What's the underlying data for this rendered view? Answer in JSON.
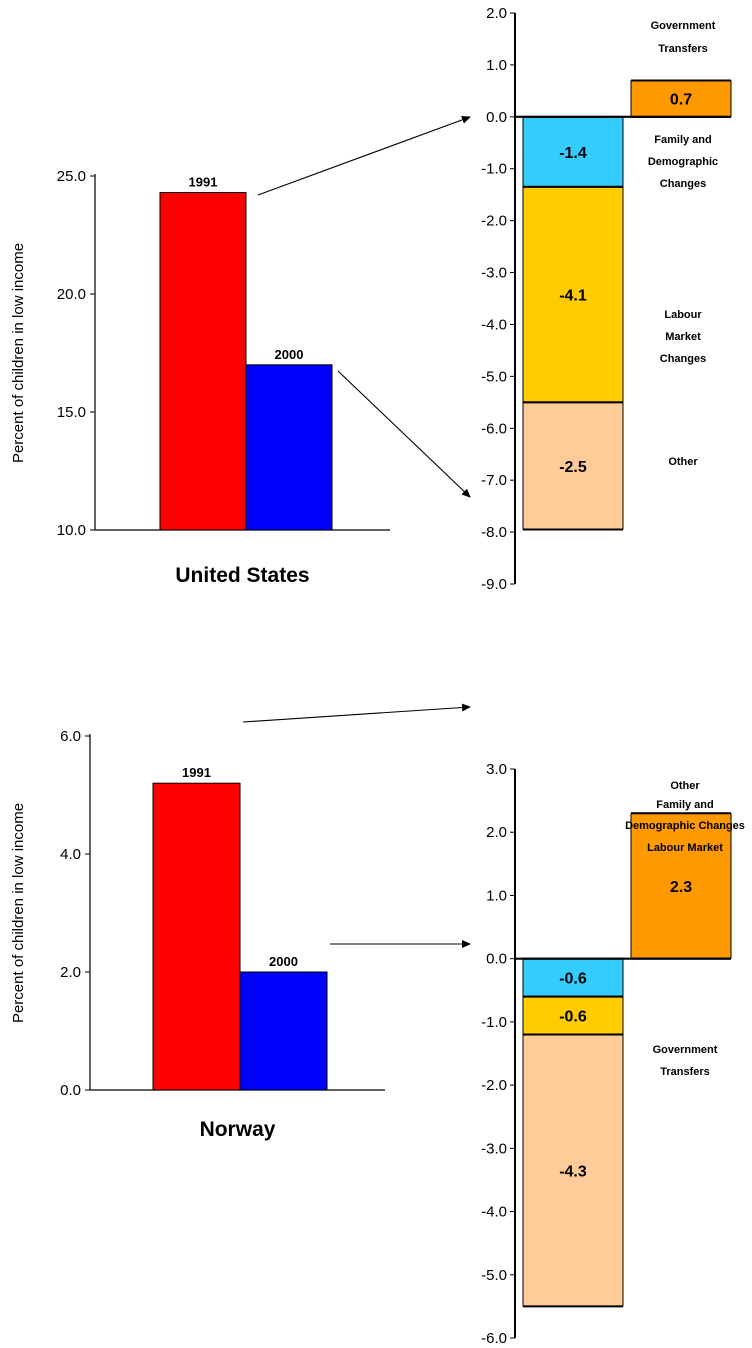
{
  "chart_data": [
    {
      "type": "bar",
      "title": "United States",
      "ylabel": "Percent of children in low income",
      "ylim": [
        10,
        25
      ],
      "yticks": [
        "10.0",
        "15.0",
        "20.0",
        "25.0"
      ],
      "categories": [
        "1991",
        "2000"
      ],
      "values": [
        24.3,
        17.0
      ],
      "colors": [
        "#ff0000",
        "#0000ff"
      ]
    },
    {
      "type": "bar",
      "subtype": "waterfall",
      "ylim": [
        -9,
        2
      ],
      "yticks": [
        "-9.0",
        "-8.0",
        "-7.0",
        "-6.0",
        "-5.0",
        "-4.0",
        "-3.0",
        "-2.0",
        "-1.0",
        "0.0",
        "1.0",
        "2.0"
      ],
      "segments": [
        {
          "label": "0.7",
          "value": 0.7,
          "start": 0,
          "end": 0.7,
          "column": "right",
          "color": "#ff9900",
          "category": [
            "Government",
            "Transfers"
          ]
        },
        {
          "label": "-1.4",
          "value": -1.4,
          "start": 0,
          "end": -1.35,
          "column": "left",
          "color": "#33ccff",
          "category": [
            "Family and",
            "Demographic",
            "Changes"
          ]
        },
        {
          "label": "-4.1",
          "value": -4.1,
          "start": -1.35,
          "end": -5.5,
          "column": "left",
          "color": "#ffcc00",
          "category": [
            "Labour",
            "Market",
            "Changes"
          ]
        },
        {
          "label": "-2.5",
          "value": -2.5,
          "start": -5.5,
          "end": -7.95,
          "column": "left",
          "color": "#ffcc99",
          "category": [
            "Other"
          ]
        }
      ]
    },
    {
      "type": "bar",
      "title": "Norway",
      "ylabel": "Percent of children in low income",
      "ylim": [
        0,
        6
      ],
      "yticks": [
        "0.0",
        "2.0",
        "4.0",
        "6.0"
      ],
      "categories": [
        "1991",
        "2000"
      ],
      "values": [
        5.2,
        2.0
      ],
      "colors": [
        "#ff0000",
        "#0000ff"
      ]
    },
    {
      "type": "bar",
      "subtype": "waterfall",
      "ylim": [
        -6,
        3
      ],
      "yticks": [
        "-6.0",
        "-5.0",
        "-4.0",
        "-3.0",
        "-2.0",
        "-1.0",
        "0.0",
        "1.0",
        "2.0",
        "3.0"
      ],
      "segments": [
        {
          "label": "2.3",
          "value": 2.3,
          "start": 0,
          "end": 2.3,
          "column": "right",
          "color": "#ff9900",
          "category": [
            "Other"
          ]
        },
        {
          "label": "-0.6",
          "value": -0.6,
          "start": 0,
          "end": -0.6,
          "column": "left",
          "color": "#33ccff",
          "category": [
            "Family and",
            "Demographic Changes"
          ]
        },
        {
          "label": "-0.6",
          "value": -0.6,
          "start": -0.6,
          "end": -1.2,
          "column": "left",
          "color": "#ffcc00",
          "category": [
            "Labour Market"
          ]
        },
        {
          "label": "-4.3",
          "value": -4.3,
          "start": -1.2,
          "end": -5.5,
          "column": "left",
          "color": "#ffcc99",
          "category": [
            "Government",
            "Transfers"
          ]
        }
      ]
    }
  ]
}
